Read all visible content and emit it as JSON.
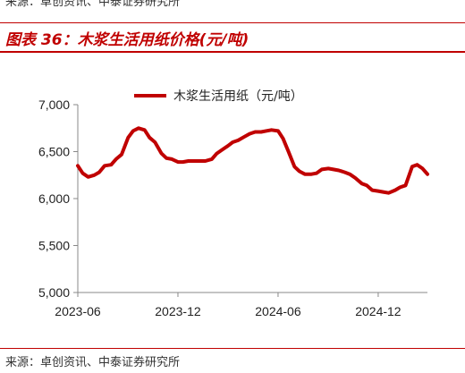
{
  "header": {
    "source_top": "来源：卓创资讯、中泰证券研究所",
    "figure_title": "图表 36：木浆生活用纸价格(元/吨)"
  },
  "footer": {
    "source": "来源：卓创资讯、中泰证券研究所"
  },
  "colors": {
    "accent": "#c00000",
    "line": "#c00000"
  },
  "chart_data": {
    "type": "line",
    "title": "",
    "xlabel": "",
    "ylabel": "",
    "ylim": [
      5000,
      7000
    ],
    "yticks": [
      5000,
      5500,
      6000,
      6500,
      7000
    ],
    "ytick_labels": [
      "5,000",
      "5,500",
      "6,000",
      "6,500",
      "7,000"
    ],
    "xticks": [
      "2023-06",
      "2023-12",
      "2024-06",
      "2024-12"
    ],
    "xrange": [
      "2023-06",
      "2025-03"
    ],
    "legend": "top-center",
    "grid": false,
    "series": [
      {
        "name": "木浆生活用纸（元/吨）",
        "x": [
          "2023-06-01",
          "2023-06-10",
          "2023-06-20",
          "2023-07-01",
          "2023-07-10",
          "2023-07-20",
          "2023-08-01",
          "2023-08-10",
          "2023-08-20",
          "2023-09-01",
          "2023-09-10",
          "2023-09-20",
          "2023-10-01",
          "2023-10-10",
          "2023-10-20",
          "2023-11-01",
          "2023-11-10",
          "2023-11-20",
          "2023-12-01",
          "2023-12-10",
          "2023-12-20",
          "2024-01-01",
          "2024-01-10",
          "2024-01-20",
          "2024-02-01",
          "2024-02-10",
          "2024-02-20",
          "2024-03-01",
          "2024-03-10",
          "2024-03-20",
          "2024-04-01",
          "2024-04-10",
          "2024-04-20",
          "2024-05-01",
          "2024-05-10",
          "2024-05-20",
          "2024-06-01",
          "2024-06-10",
          "2024-06-20",
          "2024-07-01",
          "2024-07-10",
          "2024-07-20",
          "2024-08-01",
          "2024-08-10",
          "2024-08-20",
          "2024-09-01",
          "2024-09-10",
          "2024-09-20",
          "2024-10-01",
          "2024-10-10",
          "2024-10-20",
          "2024-11-01",
          "2024-11-10",
          "2024-11-20",
          "2024-12-01",
          "2024-12-10",
          "2024-12-20",
          "2025-01-01",
          "2025-01-10",
          "2025-01-20",
          "2025-02-01",
          "2025-02-10",
          "2025-02-20",
          "2025-03-01"
        ],
        "values": [
          6350,
          6270,
          6230,
          6250,
          6280,
          6350,
          6360,
          6420,
          6470,
          6650,
          6720,
          6750,
          6730,
          6650,
          6600,
          6480,
          6430,
          6420,
          6390,
          6390,
          6400,
          6400,
          6400,
          6400,
          6420,
          6480,
          6520,
          6560,
          6600,
          6620,
          6660,
          6690,
          6710,
          6710,
          6720,
          6730,
          6720,
          6640,
          6500,
          6340,
          6290,
          6260,
          6260,
          6270,
          6310,
          6320,
          6310,
          6300,
          6280,
          6260,
          6220,
          6160,
          6140,
          6090,
          6080,
          6070,
          6060,
          6090,
          6120,
          6140,
          6340,
          6360,
          6320,
          6260
        ]
      }
    ]
  }
}
